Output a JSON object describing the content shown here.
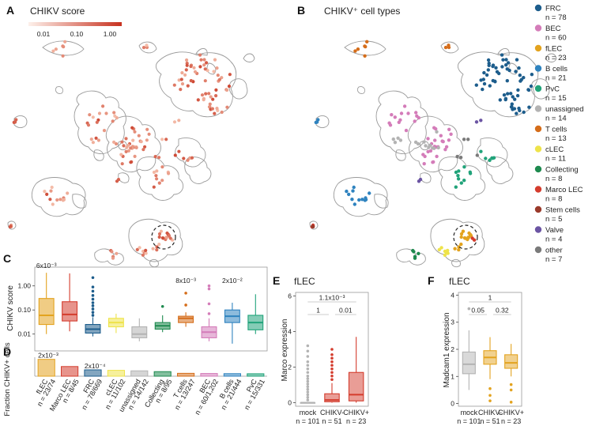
{
  "panel_labels": [
    "A",
    "B",
    "C",
    "D",
    "E",
    "F"
  ],
  "panel_a": {
    "title": "CHIKV score",
    "colorbar": {
      "ticks": [
        "0.01",
        "0.10",
        "1.00"
      ],
      "low_color": "#fde5dc",
      "high_color": "#c7311f"
    }
  },
  "panel_b": {
    "title": "CHIKV⁺ cell types",
    "legend": [
      {
        "name": "FRC",
        "n": "n = 78",
        "color": "#1d5d8c"
      },
      {
        "name": "BEC",
        "n": "n = 60",
        "color": "#d47cb9"
      },
      {
        "name": "fLEC",
        "n": "n = 23",
        "color": "#e3a31f"
      },
      {
        "name": "B cells",
        "n": "n = 21",
        "color": "#2f83bf"
      },
      {
        "name": "PvC",
        "n": "n = 15",
        "color": "#21a37a"
      },
      {
        "name": "unassigned",
        "n": "n = 14",
        "color": "#b3b3b3"
      },
      {
        "name": "T cells",
        "n": "n = 13",
        "color": "#d56d1a"
      },
      {
        "name": "cLEC",
        "n": "n = 11",
        "color": "#eee34a"
      },
      {
        "name": "Collecting",
        "n": "n = 8",
        "color": "#1e8a4f"
      },
      {
        "name": "Marco LEC",
        "n": "n = 8",
        "color": "#d43c2d"
      },
      {
        "name": "Stem cells",
        "n": "n = 5",
        "color": "#9a3a2b"
      },
      {
        "name": "Valve",
        "n": "n = 4",
        "color": "#6b54a3"
      },
      {
        "name": "other",
        "n": "n = 7",
        "color": "#7a7a7a"
      }
    ]
  },
  "chart_data": [
    {
      "id": "C",
      "type": "box",
      "ylabel": "CHIKV score",
      "yscale": "log",
      "ylim": [
        0.002,
        6
      ],
      "yticks": [
        "0.01",
        "0.10",
        "1.00"
      ],
      "categories": [
        "fLEC",
        "Marco LEC",
        "FRC",
        "cLEC",
        "unassigned",
        "Collecting",
        "T cells",
        "BEC",
        "B cells",
        "PvC"
      ],
      "colors": [
        "#e3a31f",
        "#d43c2d",
        "#1d5d8c",
        "#eee34a",
        "#b3b3b3",
        "#1e8a4f",
        "#d56d1a",
        "#d47cb9",
        "#2f83bf",
        "#21a37a"
      ],
      "boxes": [
        {
          "min": 0.01,
          "q1": 0.025,
          "median": 0.06,
          "q3": 0.3,
          "max": 3.5,
          "outliers": []
        },
        {
          "min": 0.013,
          "q1": 0.035,
          "median": 0.065,
          "q3": 0.22,
          "max": 3.3,
          "outliers": []
        },
        {
          "min": 0.008,
          "q1": 0.011,
          "median": 0.016,
          "q3": 0.025,
          "max": 0.05,
          "outliers": [
            0.06,
            0.08,
            0.11,
            0.15,
            0.2,
            0.28,
            0.4,
            0.6,
            0.9,
            2.2
          ]
        },
        {
          "min": 0.011,
          "q1": 0.02,
          "median": 0.03,
          "q3": 0.045,
          "max": 0.07,
          "outliers": []
        },
        {
          "min": 0.005,
          "q1": 0.007,
          "median": 0.01,
          "q3": 0.02,
          "max": 0.045,
          "outliers": []
        },
        {
          "min": 0.012,
          "q1": 0.016,
          "median": 0.022,
          "q3": 0.03,
          "max": 0.06,
          "outliers": [
            0.14
          ]
        },
        {
          "min": 0.02,
          "q1": 0.03,
          "median": 0.045,
          "q3": 0.055,
          "max": 0.08,
          "outliers": [
            0.16,
            0.5
          ]
        },
        {
          "min": 0.005,
          "q1": 0.007,
          "median": 0.012,
          "q3": 0.02,
          "max": 0.045,
          "outliers": [
            0.07,
            0.18,
            0.75,
            1.0
          ]
        },
        {
          "min": 0.004,
          "q1": 0.03,
          "median": 0.055,
          "q3": 0.1,
          "max": 0.2,
          "outliers": []
        },
        {
          "min": 0.01,
          "q1": 0.015,
          "median": 0.03,
          "q3": 0.06,
          "max": 0.45,
          "outliers": []
        }
      ],
      "annotations": [
        {
          "index": 0,
          "text": "6x10⁻³"
        },
        {
          "index": 6,
          "text": "8x10⁻³"
        },
        {
          "index": 8,
          "text": "2x10⁻²"
        }
      ]
    },
    {
      "id": "D",
      "type": "bar",
      "ylabel": "Fraction CHIKV+ cells",
      "ylim": [
        0,
        0.35
      ],
      "categories": [
        "fLEC",
        "Marco LEC",
        "FRC",
        "cLEC",
        "unassigned",
        "Collecting",
        "T cells",
        "BEC",
        "B cells",
        "PvC"
      ],
      "xlabels": [
        {
          "name": "fLEC",
          "n": "n = 23/74"
        },
        {
          "name": "Marco LEC",
          "n": "n = 8/45"
        },
        {
          "name": "FRC",
          "n": "n = 78/669"
        },
        {
          "name": "cLEC",
          "n": "n = 11/102"
        },
        {
          "name": "unassigned",
          "n": "n = 14/142"
        },
        {
          "name": "Collecting",
          "n": "n = 8/95"
        },
        {
          "name": "T cells",
          "n": "n = 13/247"
        },
        {
          "name": "BEC",
          "n": "n = 60/1,202"
        },
        {
          "name": "B cells",
          "n": "n = 21/444"
        },
        {
          "name": "PvC",
          "n": "n = 15/331"
        }
      ],
      "values": [
        0.311,
        0.178,
        0.117,
        0.108,
        0.099,
        0.084,
        0.053,
        0.05,
        0.047,
        0.045
      ],
      "annotations": [
        {
          "index": 0,
          "text": "2x10⁻³"
        },
        {
          "index": 2,
          "text": "2x10⁻⁴"
        }
      ]
    },
    {
      "id": "E",
      "type": "box",
      "title": "fLEC",
      "ylabel": "Marco expression",
      "ylim": [
        -0.2,
        6.2
      ],
      "yticks": [
        "0",
        "2",
        "4",
        "6"
      ],
      "xlabels": [
        {
          "name": "mock",
          "n": "n = 101"
        },
        {
          "name": "CHIKV-",
          "n": "n = 51"
        },
        {
          "name": "CHIKV+",
          "n": "n = 23"
        }
      ],
      "colors": [
        "#b3b3b3",
        "#d43c2d",
        "#d43c2d"
      ],
      "boxes": [
        {
          "min": 0,
          "q1": 0,
          "median": 0,
          "q3": 0,
          "max": 0,
          "outliers": [
            0.15,
            0.3,
            0.45,
            0.6,
            0.75,
            0.9,
            1.05,
            1.2,
            1.35,
            1.5,
            1.7,
            1.9,
            2.1,
            2.3,
            2.6,
            2.9,
            3.2
          ]
        },
        {
          "min": 0,
          "q1": 0.05,
          "median": 0.15,
          "q3": 0.5,
          "max": 1.1,
          "outliers": [
            1.3,
            1.5,
            1.7,
            1.9,
            2.1,
            2.3,
            2.5,
            2.7,
            3.0
          ]
        },
        {
          "min": 0,
          "q1": 0.1,
          "median": 0.45,
          "q3": 1.7,
          "max": 3.7,
          "outliers": []
        }
      ],
      "brackets": [
        {
          "from": 0,
          "to": 2,
          "text": "1.1x10⁻³"
        },
        {
          "from": 0,
          "to": 1,
          "text": "1"
        },
        {
          "from": 1,
          "to": 2,
          "text": "0.01"
        }
      ]
    },
    {
      "id": "F",
      "type": "box",
      "title": "fLEC",
      "ylabel": "Madcam1 expression",
      "ylim": [
        -0.1,
        4.1
      ],
      "yticks": [
        "0",
        "1",
        "2",
        "3",
        "4"
      ],
      "xlabels": [
        {
          "name": "mock",
          "n": "n = 101"
        },
        {
          "name": "CHIKV-",
          "n": "n = 51"
        },
        {
          "name": "CHIKV+",
          "n": "n = 23"
        }
      ],
      "colors": [
        "#b3b3b3",
        "#e3a31f",
        "#e3a31f"
      ],
      "boxes": [
        {
          "min": 0.5,
          "q1": 1.1,
          "median": 1.45,
          "q3": 1.9,
          "max": 2.7,
          "outliers": [
            3.5
          ]
        },
        {
          "min": 0.9,
          "q1": 1.45,
          "median": 1.7,
          "q3": 1.95,
          "max": 2.45,
          "outliers": [
            0.55,
            0.3,
            0.1
          ]
        },
        {
          "min": 1.0,
          "q1": 1.3,
          "median": 1.5,
          "q3": 1.8,
          "max": 2.2,
          "outliers": [
            0.7,
            0.5,
            0.05
          ]
        }
      ],
      "brackets": [
        {
          "from": 0,
          "to": 2,
          "text": "1"
        },
        {
          "from": 0,
          "to": 1,
          "text": "0.05"
        },
        {
          "from": 1,
          "to": 2,
          "text": "0.32"
        }
      ]
    }
  ]
}
